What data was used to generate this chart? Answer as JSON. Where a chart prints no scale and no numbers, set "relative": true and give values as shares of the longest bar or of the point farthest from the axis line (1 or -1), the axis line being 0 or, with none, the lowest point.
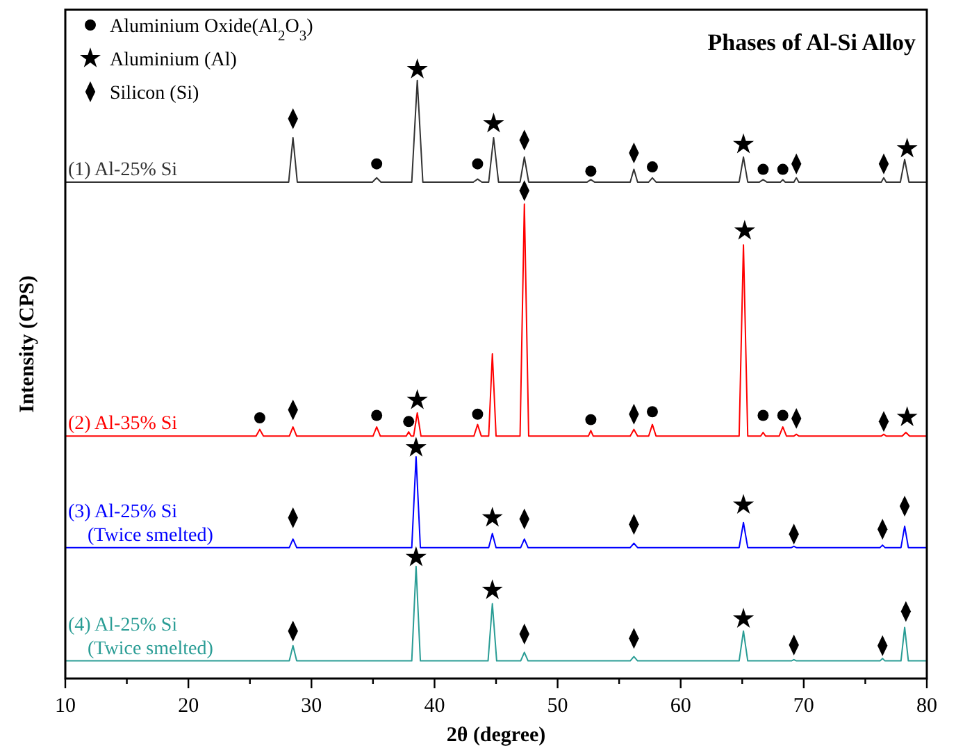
{
  "chart_data": {
    "type": "line",
    "title": "Phases of Al-Si Alloy",
    "xlabel": "2θ (degree)",
    "ylabel": "Intensity (CPS)",
    "relative": true,
    "tick_labels": "x",
    "legend": "top left",
    "grid": false,
    "xlim": [
      10,
      80
    ],
    "xticks": [
      10,
      {
        "value": 15,
        "label": null
      },
      20,
      {
        "value": 25,
        "label": null
      },
      30,
      {
        "value": 35,
        "label": null
      },
      40,
      {
        "value": 45,
        "label": null
      },
      50,
      {
        "value": 55,
        "label": null
      },
      60,
      {
        "value": 65,
        "label": null
      },
      70,
      {
        "value": 75,
        "label": null
      },
      80
    ],
    "series": [
      {
        "name": "(1) Al-25% Si",
        "color": "#333333",
        "x": [
          10,
          28.15,
          28.5,
          28.85,
          34.95,
          35.3,
          35.65,
          38.15,
          38.6,
          39.05,
          43.15,
          43.5,
          43.85,
          44.4,
          44.8,
          45.2,
          46.95,
          47.3,
          47.65,
          52.4,
          52.7,
          53,
          55.9,
          56.2,
          56.5,
          57.4,
          57.7,
          58,
          64.75,
          65.1,
          65.45,
          66.4,
          66.7,
          67,
          68.1,
          68.3,
          68.5,
          69.2,
          69.4,
          69.6,
          76.3,
          76.5,
          76.7,
          77.85,
          78.2,
          78.55,
          80
        ],
        "values": [
          0.815,
          0.815,
          0.888,
          0.815,
          0.815,
          0.822,
          0.815,
          0.815,
          0.982,
          0.815,
          0.815,
          0.82,
          0.815,
          0.815,
          0.888,
          0.815,
          0.815,
          0.856,
          0.815,
          0.815,
          0.819,
          0.815,
          0.815,
          0.836,
          0.815,
          0.815,
          0.822,
          0.815,
          0.815,
          0.856,
          0.815,
          0.815,
          0.819,
          0.815,
          0.815,
          0.819,
          0.815,
          0.815,
          0.822,
          0.815,
          0.815,
          0.822,
          0.815,
          0.815,
          0.852,
          0.815,
          0.815
        ]
      },
      {
        "name": "(2) Al-35% Si",
        "color": "#ff0000",
        "x": [
          10,
          25.5,
          25.8,
          26.1,
          28.2,
          28.5,
          28.8,
          35,
          35.3,
          35.6,
          37.7,
          37.9,
          38.1,
          38.3,
          38.6,
          38.9,
          43.2,
          43.5,
          43.8,
          44.4,
          44.7,
          45,
          46.95,
          47.3,
          47.65,
          52.5,
          52.7,
          52.9,
          55.9,
          56.2,
          56.5,
          57.4,
          57.7,
          58,
          64.75,
          65.1,
          65.45,
          66.5,
          66.7,
          66.9,
          68,
          68.3,
          68.6,
          69.2,
          69.4,
          69.6,
          76.3,
          76.5,
          76.7,
          78,
          78.3,
          78.6,
          80
        ],
        "values": [
          0.398,
          0.398,
          0.409,
          0.398,
          0.398,
          0.413,
          0.398,
          0.398,
          0.413,
          0.398,
          0.398,
          0.405,
          0.398,
          0.398,
          0.436,
          0.398,
          0.398,
          0.417,
          0.398,
          0.398,
          0.533,
          0.398,
          0.398,
          0.779,
          0.398,
          0.398,
          0.407,
          0.398,
          0.398,
          0.409,
          0.398,
          0.398,
          0.417,
          0.398,
          0.398,
          0.712,
          0.398,
          0.398,
          0.404,
          0.398,
          0.398,
          0.413,
          0.398,
          0.398,
          0.401,
          0.398,
          0.398,
          0.401,
          0.398,
          0.398,
          0.404,
          0.398,
          0.398
        ]
      },
      {
        "name": "(3) Al-25% Si\n(Twice smelted)",
        "color": "#0000ff",
        "x": [
          10,
          28.2,
          28.5,
          28.8,
          38.15,
          38.5,
          38.85,
          44.4,
          44.7,
          45,
          47,
          47.3,
          47.6,
          55.9,
          56.2,
          56.5,
          64.75,
          65.1,
          65.45,
          69,
          69.2,
          69.4,
          76.2,
          76.4,
          76.6,
          77.9,
          78.2,
          78.5,
          80
        ],
        "values": [
          0.215,
          0.215,
          0.229,
          0.215,
          0.215,
          0.364,
          0.215,
          0.215,
          0.238,
          0.215,
          0.215,
          0.229,
          0.215,
          0.215,
          0.222,
          0.215,
          0.215,
          0.256,
          0.215,
          0.215,
          0.217,
          0.215,
          0.215,
          0.219,
          0.215,
          0.215,
          0.25,
          0.215,
          0.215
        ]
      },
      {
        "name": "(4) Al-25% Si\n(Twice smelted)",
        "color": "#2a9d95",
        "x": [
          10,
          28.2,
          28.5,
          28.8,
          38.15,
          38.5,
          38.85,
          44.35,
          44.7,
          45.05,
          47,
          47.3,
          47.6,
          55.9,
          56.2,
          56.5,
          64.75,
          65.1,
          65.45,
          69,
          69.2,
          69.4,
          76.2,
          76.4,
          76.6,
          77.9,
          78.2,
          78.5,
          80
        ],
        "values": [
          0.029,
          0.029,
          0.054,
          0.029,
          0.029,
          0.184,
          0.029,
          0.029,
          0.123,
          0.029,
          0.029,
          0.043,
          0.029,
          0.029,
          0.036,
          0.029,
          0.029,
          0.078,
          0.029,
          0.029,
          0.031,
          0.029,
          0.029,
          0.033,
          0.029,
          0.029,
          0.084,
          0.029,
          0.029
        ]
      },
      {
        "name": "Aluminium Oxide(Al$_{2}$O$_{3}$)",
        "type": "scatter",
        "marker": "circle",
        "color": "#000000",
        "x": [
          35.3,
          43.5,
          52.7,
          57.7,
          66.7,
          68.3,
          25.8,
          35.3,
          37.9,
          43.5,
          52.7,
          57.7,
          66.7,
          68.3
        ],
        "values": [
          0.845,
          0.845,
          0.833,
          0.84,
          0.836,
          0.836,
          0.428,
          0.432,
          0.422,
          0.434,
          0.425,
          0.438,
          0.432,
          0.432
        ]
      },
      {
        "name": "Aluminium (Al)",
        "type": "scatter",
        "marker": "star",
        "color": "#000000",
        "x": [
          38.6,
          44.8,
          65.1,
          78.4,
          38.6,
          65.2,
          78.4,
          38.5,
          44.7,
          65.1,
          38.5,
          44.7,
          65.1
        ],
        "values": [
          1,
          0.911,
          0.877,
          0.87,
          0.457,
          0.735,
          0.429,
          0.379,
          0.264,
          0.285,
          0.199,
          0.145,
          0.098
        ]
      },
      {
        "name": "Silicon (Si)",
        "type": "scatter",
        "marker": "diamond",
        "color": "#000000",
        "x": [
          28.5,
          47.3,
          56.2,
          69.4,
          76.5,
          28.5,
          47.3,
          56.2,
          69.4,
          76.5,
          28.5,
          47.3,
          56.2,
          69.2,
          76.4,
          78.2,
          28.5,
          47.3,
          56.2,
          69.2,
          76.4,
          78.3
        ],
        "values": [
          0.919,
          0.884,
          0.863,
          0.845,
          0.845,
          0.441,
          0.801,
          0.434,
          0.427,
          0.422,
          0.264,
          0.262,
          0.253,
          0.237,
          0.245,
          0.283,
          0.078,
          0.073,
          0.066,
          0.055,
          0.054,
          0.11
        ]
      }
    ]
  }
}
